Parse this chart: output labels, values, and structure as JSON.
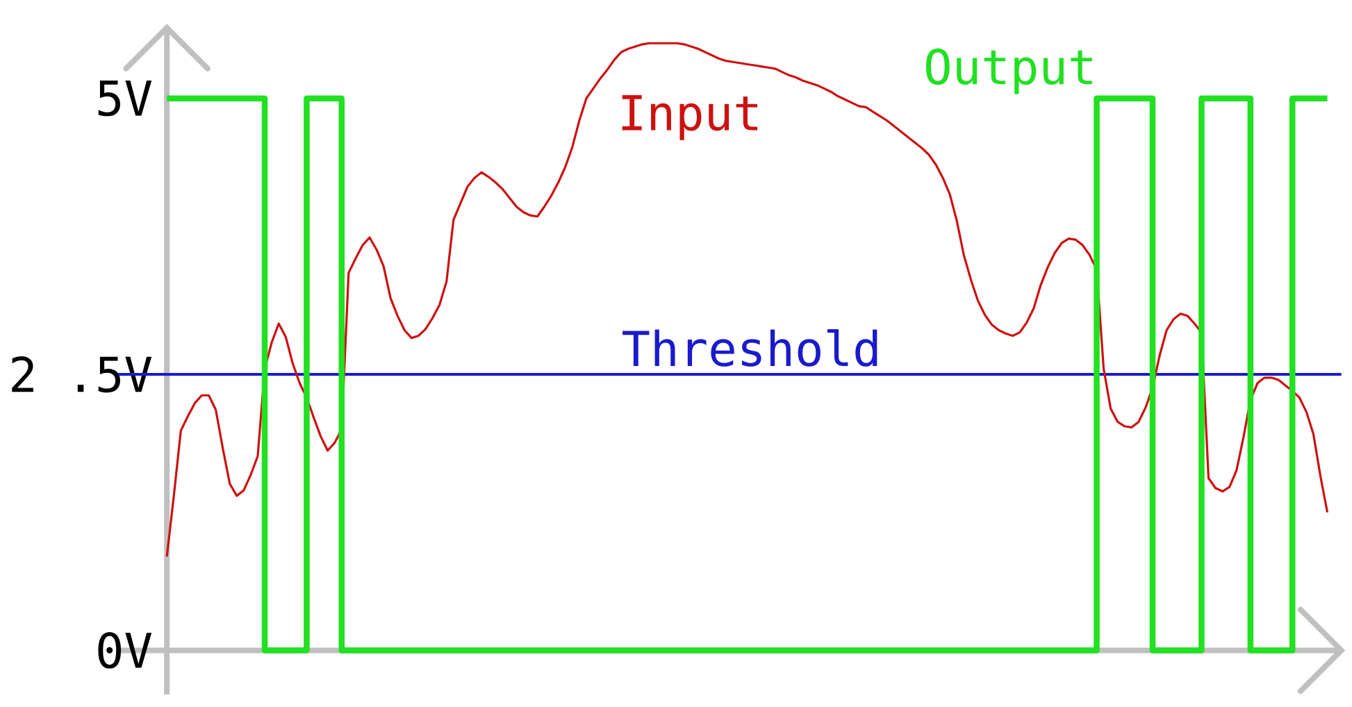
{
  "chart_data": {
    "type": "line",
    "categories": [
      null,
      null,
      null,
      null,
      null,
      null,
      null,
      null,
      null,
      null,
      null,
      null,
      null,
      null,
      null,
      null,
      null,
      null,
      null,
      null,
      null,
      null,
      null,
      null,
      null,
      null,
      null,
      null,
      null,
      null,
      null,
      null,
      null,
      null,
      null,
      null,
      null,
      null,
      null,
      null,
      null,
      null,
      null,
      null,
      null,
      null,
      null,
      null,
      null,
      null,
      null,
      null,
      null,
      null,
      null,
      null,
      null,
      null,
      null,
      null,
      null,
      null,
      null,
      null,
      null,
      null,
      null,
      null,
      null,
      null,
      null,
      null,
      null,
      null,
      null,
      null,
      null,
      null,
      null,
      null,
      null,
      null,
      null,
      null,
      null,
      null,
      null,
      null,
      null,
      null,
      null,
      null,
      null,
      null,
      null,
      null,
      null,
      null,
      null,
      null,
      null,
      null,
      null,
      null,
      null,
      null,
      null,
      null,
      null,
      null,
      null,
      null,
      null,
      null,
      null,
      null,
      null,
      null,
      null,
      null,
      null,
      null,
      null,
      null,
      null,
      null,
      null,
      null,
      null,
      null,
      null,
      null,
      null,
      null,
      null,
      null,
      null,
      null,
      null,
      null,
      null,
      null,
      null,
      null,
      null,
      null,
      null,
      null,
      null,
      null,
      null,
      null,
      null,
      null,
      null,
      null,
      null,
      null,
      null,
      null,
      null,
      null,
      null,
      null,
      null,
      null,
      null
    ],
    "ylim": [
      -0.4,
      5.64
    ],
    "yticks": [
      {
        "value": 0,
        "label": "0V"
      },
      {
        "value": 2.5,
        "label": "2 .5V"
      },
      {
        "value": 5,
        "label": "5V"
      }
    ],
    "tick_labels": "y",
    "marker": "none",
    "series": [
      {
        "name": "Input",
        "color": "#cc1111",
        "values": [
          0.85,
          1.4,
          1.99,
          2.12,
          2.24,
          2.31,
          2.31,
          2.18,
          1.83,
          1.51,
          1.4,
          1.45,
          1.59,
          1.76,
          2.55,
          2.79,
          2.96,
          2.84,
          2.6,
          2.42,
          2.29,
          2.11,
          1.94,
          1.81,
          1.88,
          2.0,
          3.42,
          3.55,
          3.67,
          3.74,
          3.63,
          3.48,
          3.19,
          3.03,
          2.9,
          2.83,
          2.85,
          2.91,
          3.01,
          3.13,
          3.34,
          3.9,
          4.05,
          4.2,
          4.28,
          4.33,
          4.29,
          4.24,
          4.18,
          4.1,
          4.02,
          3.97,
          3.94,
          3.93,
          4.02,
          4.12,
          4.24,
          4.38,
          4.56,
          4.8,
          5.0,
          5.09,
          5.18,
          5.26,
          5.35,
          5.42,
          5.45,
          5.47,
          5.49,
          5.5,
          5.5,
          5.5,
          5.5,
          5.5,
          5.49,
          5.47,
          5.45,
          5.42,
          5.39,
          5.36,
          5.34,
          5.33,
          5.32,
          5.31,
          5.3,
          5.29,
          5.28,
          5.27,
          5.24,
          5.21,
          5.19,
          5.16,
          5.14,
          5.12,
          5.09,
          5.06,
          5.02,
          4.99,
          4.96,
          4.93,
          4.92,
          4.88,
          4.84,
          4.8,
          4.75,
          4.7,
          4.65,
          4.6,
          4.55,
          4.49,
          4.4,
          4.28,
          4.13,
          3.89,
          3.58,
          3.36,
          3.17,
          3.04,
          2.95,
          2.9,
          2.87,
          2.85,
          2.88,
          2.97,
          3.1,
          3.31,
          3.47,
          3.6,
          3.69,
          3.73,
          3.72,
          3.67,
          3.58,
          3.45,
          2.55,
          2.19,
          2.07,
          2.03,
          2.02,
          2.07,
          2.2,
          2.38,
          2.67,
          2.9,
          3.0,
          3.05,
          3.03,
          2.96,
          2.88,
          1.56,
          1.47,
          1.44,
          1.48,
          1.63,
          1.93,
          2.27,
          2.42,
          2.47,
          2.47,
          2.45,
          2.4,
          2.35,
          2.29,
          2.16,
          1.96,
          1.58,
          1.25
        ]
      },
      {
        "name": "Output",
        "type": "step",
        "color": "#22e022",
        "values": [
          5,
          5,
          5,
          5,
          5,
          5,
          5,
          5,
          5,
          5,
          5,
          5,
          5,
          5,
          0,
          0,
          0,
          0,
          0,
          0,
          5,
          5,
          5,
          5,
          5,
          0,
          0,
          0,
          0,
          0,
          0,
          0,
          0,
          0,
          0,
          0,
          0,
          0,
          0,
          0,
          0,
          0,
          0,
          0,
          0,
          0,
          0,
          0,
          0,
          0,
          0,
          0,
          0,
          0,
          0,
          0,
          0,
          0,
          0,
          0,
          0,
          0,
          0,
          0,
          0,
          0,
          0,
          0,
          0,
          0,
          0,
          0,
          0,
          0,
          0,
          0,
          0,
          0,
          0,
          0,
          0,
          0,
          0,
          0,
          0,
          0,
          0,
          0,
          0,
          0,
          0,
          0,
          0,
          0,
          0,
          0,
          0,
          0,
          0,
          0,
          0,
          0,
          0,
          0,
          0,
          0,
          0,
          0,
          0,
          0,
          0,
          0,
          0,
          0,
          0,
          0,
          0,
          0,
          0,
          0,
          0,
          0,
          0,
          0,
          0,
          0,
          0,
          0,
          0,
          0,
          0,
          0,
          0,
          5,
          5,
          5,
          5,
          5,
          5,
          5,
          5,
          0,
          0,
          0,
          0,
          0,
          0,
          0,
          5,
          5,
          5,
          5,
          5,
          5,
          5,
          0,
          0,
          0,
          0,
          0,
          0,
          5,
          5,
          5,
          5,
          5,
          5
        ]
      }
    ],
    "ref_lines": [
      {
        "axis": "y",
        "value": 2.5,
        "label": "Threshold",
        "color": "#1a1acc"
      }
    ]
  }
}
